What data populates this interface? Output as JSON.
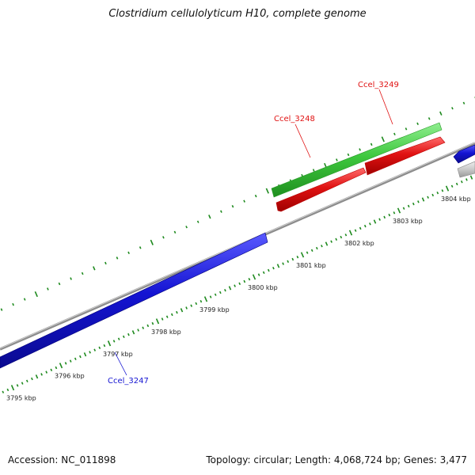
{
  "title": "Clostridium cellulolyticum H10, complete genome",
  "footer": {
    "accession": "Accession: NC_011898",
    "topology": "Topology: circular; Length: 4,068,724 bp; Genes: 3,477"
  },
  "colors": {
    "tick": "#1e8a1e",
    "backbone": "#8c8c8c",
    "gene_reverse": "#1414d2",
    "gene_forward": "#e01212",
    "rna": "#3ec83e",
    "other": "#c8c8c8"
  },
  "ruler": {
    "labels": [
      "3795 kbp",
      "3796 kbp",
      "3797 kbp",
      "3798 kbp",
      "3799 kbp",
      "3800 kbp",
      "3801 kbp",
      "3802 kbp",
      "3803 kbp",
      "3804 kbp"
    ]
  },
  "genes": [
    {
      "name": "Ccel_3247",
      "color": "#1414d2"
    },
    {
      "name": "Ccel_3248",
      "color": "#e01212"
    },
    {
      "name": "Ccel_3249",
      "color": "#e01212"
    }
  ]
}
